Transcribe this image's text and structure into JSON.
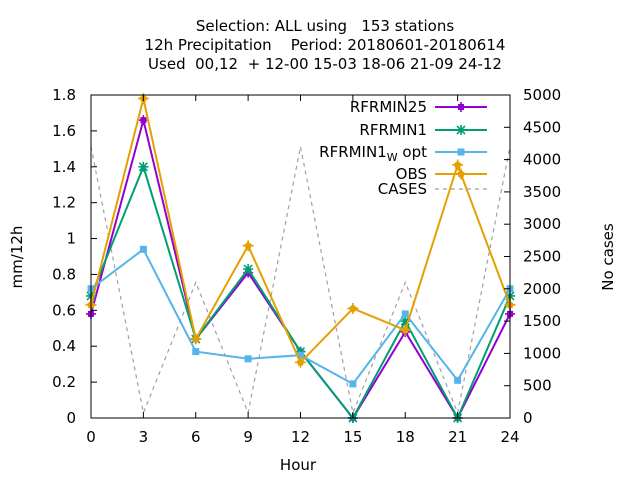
{
  "title_lines": [
    "Selection: ALL using   153 stations",
    "12h Precipitation    Period: 20180601-20180614",
    "Used  00,12  + 12-00 15-03 18-06 21-09 24-12"
  ],
  "chart_data": {
    "type": "line",
    "xlabel": "Hour",
    "ylabel": "mm/12h",
    "y2label": "No cases",
    "x": [
      0,
      3,
      6,
      9,
      12,
      15,
      18,
      21,
      24
    ],
    "xticks": [
      "0",
      "3",
      "6",
      "9",
      "12",
      "15",
      "18",
      "21",
      "24"
    ],
    "xlim": [
      0,
      24
    ],
    "ylim": [
      0,
      1.8
    ],
    "yticks": [
      "0",
      "0.2",
      "0.4",
      "0.6",
      "0.8",
      "1",
      "1.2",
      "1.4",
      "1.6",
      "1.8"
    ],
    "y2lim": [
      0,
      5000
    ],
    "y2ticks": [
      "0",
      "500",
      "1000",
      "1500",
      "2000",
      "2500",
      "3000",
      "3500",
      "4000",
      "4500",
      "5000"
    ],
    "grid": false,
    "legend_position": "top-right",
    "series": [
      {
        "name": "RFRMIN25",
        "label_main": "RFRMIN25",
        "label_sub": "",
        "label_tail": "",
        "color": "#9400D3",
        "marker": "square-plus",
        "dash": "",
        "axis": "y",
        "values": [
          0.58,
          1.66,
          0.44,
          0.81,
          0.37,
          0.0,
          0.48,
          0.0,
          0.58
        ]
      },
      {
        "name": "RFRMIN1",
        "label_main": "RFRMIN1",
        "label_sub": "",
        "label_tail": "",
        "color": "#009E73",
        "marker": "star",
        "dash": "",
        "axis": "y",
        "values": [
          0.68,
          1.4,
          0.44,
          0.83,
          0.37,
          0.0,
          0.54,
          0.0,
          0.68
        ]
      },
      {
        "name": "RFRMIN1W opt",
        "label_main": "RFRMIN1",
        "label_sub": "W",
        "label_tail": " opt",
        "color": "#56B4E9",
        "marker": "square",
        "dash": "",
        "axis": "y",
        "values": [
          0.72,
          0.94,
          0.37,
          0.33,
          0.35,
          0.19,
          0.58,
          0.21,
          0.72
        ]
      },
      {
        "name": "OBS",
        "label_main": "OBS",
        "label_sub": "",
        "label_tail": "",
        "color": "#E69F00",
        "marker": "pentagon-plus",
        "dash": "",
        "axis": "y",
        "values": [
          0.63,
          1.78,
          0.44,
          0.96,
          0.31,
          0.61,
          0.49,
          1.41,
          0.63
        ]
      },
      {
        "name": "CASES",
        "label_main": "CASES",
        "label_sub": "",
        "label_tail": "",
        "color": "#A0A0A0",
        "marker": "none",
        "dash": "4,4",
        "axis": "y2",
        "values": [
          4200,
          80,
          2100,
          80,
          4200,
          80,
          2100,
          80,
          4200
        ]
      }
    ]
  }
}
